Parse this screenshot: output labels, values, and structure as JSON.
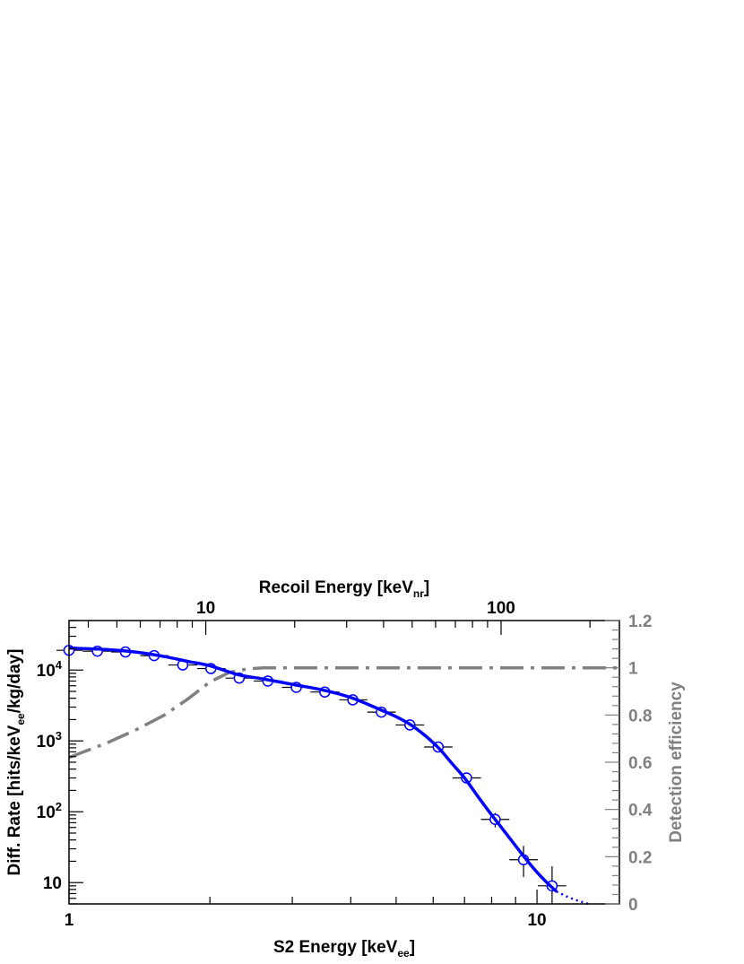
{
  "chart_data": {
    "type": "scatter",
    "x_axis": {
      "label": "S2 Energy [keV",
      "label_sub": "ee",
      "label_suffix": "]",
      "scale": "log",
      "range": [
        1,
        15
      ],
      "major_ticks": [
        {
          "value": 1,
          "label": "1"
        },
        {
          "value": 10,
          "label": "10"
        }
      ]
    },
    "top_axis": {
      "label": "Recoil Energy [keV",
      "label_sub": "nr",
      "label_suffix": "]",
      "scale": "log",
      "major_ticks": [
        {
          "value": 10,
          "label": "10"
        },
        {
          "value": 100,
          "label": "100"
        }
      ]
    },
    "y_axis": {
      "label": "Diff. Rate [hits/keV",
      "label_sub": "ee",
      "label_suffix": "/kg/day]",
      "scale": "log",
      "range": [
        5,
        50000
      ],
      "major_ticks": [
        {
          "value": 10,
          "label": "10"
        },
        {
          "value": 100,
          "label": "10",
          "exp": "2"
        },
        {
          "value": 1000,
          "label": "10",
          "exp": "3"
        },
        {
          "value": 10000,
          "label": "10",
          "exp": "4"
        }
      ]
    },
    "y2_axis": {
      "label": "Detection efficiency",
      "scale": "linear",
      "range": [
        0,
        1.2
      ],
      "ticks": [
        "0",
        "0.2",
        "0.4",
        "0.6",
        "0.8",
        "1",
        "1.2"
      ],
      "color": "#808080"
    },
    "data_points": [
      {
        "x": 1.0,
        "y": 19000,
        "xerr": [
          0.94,
          1.07
        ],
        "yerr": [
          17500,
          20500
        ]
      },
      {
        "x": 1.15,
        "y": 18500,
        "xerr": [
          1.07,
          1.23
        ],
        "yerr": [
          17000,
          20000
        ]
      },
      {
        "x": 1.32,
        "y": 18000,
        "xerr": [
          1.23,
          1.42
        ],
        "yerr": [
          16500,
          19500
        ]
      },
      {
        "x": 1.52,
        "y": 16000,
        "xerr": [
          1.42,
          1.63
        ],
        "yerr": [
          14800,
          17300
        ]
      },
      {
        "x": 1.75,
        "y": 11800,
        "xerr": [
          1.63,
          1.88
        ],
        "yerr": [
          10900,
          12700
        ]
      },
      {
        "x": 2.01,
        "y": 10500,
        "xerr": [
          1.88,
          2.16
        ],
        "yerr": [
          9700,
          11300
        ]
      },
      {
        "x": 2.31,
        "y": 7700,
        "xerr": [
          2.16,
          2.48
        ],
        "yerr": [
          7100,
          8300
        ]
      },
      {
        "x": 2.66,
        "y": 7000,
        "xerr": [
          2.48,
          2.85
        ],
        "yerr": [
          6500,
          7500
        ]
      },
      {
        "x": 3.06,
        "y": 5700,
        "xerr": [
          2.85,
          3.28
        ],
        "yerr": [
          5300,
          6100
        ]
      },
      {
        "x": 3.52,
        "y": 4900,
        "xerr": [
          3.28,
          3.78
        ],
        "yerr": [
          4550,
          5250
        ]
      },
      {
        "x": 4.04,
        "y": 3800,
        "xerr": [
          3.78,
          4.34
        ],
        "yerr": [
          3500,
          4100
        ]
      },
      {
        "x": 4.65,
        "y": 2550,
        "xerr": [
          4.34,
          4.99
        ],
        "yerr": [
          2350,
          2750
        ]
      },
      {
        "x": 5.35,
        "y": 1680,
        "xerr": [
          4.99,
          5.74
        ],
        "yerr": [
          1540,
          1820
        ]
      },
      {
        "x": 6.15,
        "y": 820,
        "xerr": [
          5.74,
          6.6
        ],
        "yerr": [
          740,
          900
        ]
      },
      {
        "x": 7.07,
        "y": 300,
        "xerr": [
          6.6,
          7.59
        ],
        "yerr": [
          265,
          340
        ]
      },
      {
        "x": 8.14,
        "y": 78,
        "xerr": [
          7.59,
          8.73
        ],
        "yerr": [
          60,
          96
        ]
      },
      {
        "x": 9.36,
        "y": 21,
        "xerr": [
          8.73,
          10.04
        ],
        "yerr": [
          12,
          33
        ]
      },
      {
        "x": 10.77,
        "y": 9,
        "xerr": [
          10.04,
          11.55
        ],
        "yerr": [
          5,
          17
        ]
      }
    ],
    "fit_curve": {
      "color": "#0000ff",
      "x": [
        1.0,
        1.2,
        1.4,
        1.6,
        1.8,
        2.0,
        2.3,
        2.6,
        3.0,
        3.5,
        4.0,
        4.6,
        5.0,
        5.4,
        5.8,
        6.2,
        6.6,
        7.0,
        7.5,
        8.0,
        8.5,
        9.0,
        9.5,
        10.0,
        10.5,
        11.0
      ],
      "y": [
        20500,
        19500,
        17800,
        15500,
        13200,
        11500,
        8600,
        7500,
        6300,
        5200,
        4100,
        2800,
        2200,
        1650,
        1150,
        760,
        470,
        300,
        160,
        90,
        54,
        33,
        21,
        14,
        10,
        7.5
      ]
    },
    "fit_extrapolation": {
      "color": "#0000ff",
      "x": [
        11.0,
        11.5,
        12.0,
        12.5,
        13.0
      ],
      "y": [
        7.5,
        6.5,
        5.8,
        5.3,
        4.9
      ]
    },
    "efficiency_curve": {
      "color": "#808080",
      "x": [
        1.0,
        1.2,
        1.4,
        1.6,
        1.8,
        2.0,
        2.2,
        2.4,
        2.6,
        2.8,
        3.0,
        15.0
      ],
      "y": [
        0.62,
        0.68,
        0.74,
        0.8,
        0.87,
        0.94,
        0.98,
        0.995,
        1.0,
        1.0,
        1.0,
        1.0
      ]
    }
  }
}
